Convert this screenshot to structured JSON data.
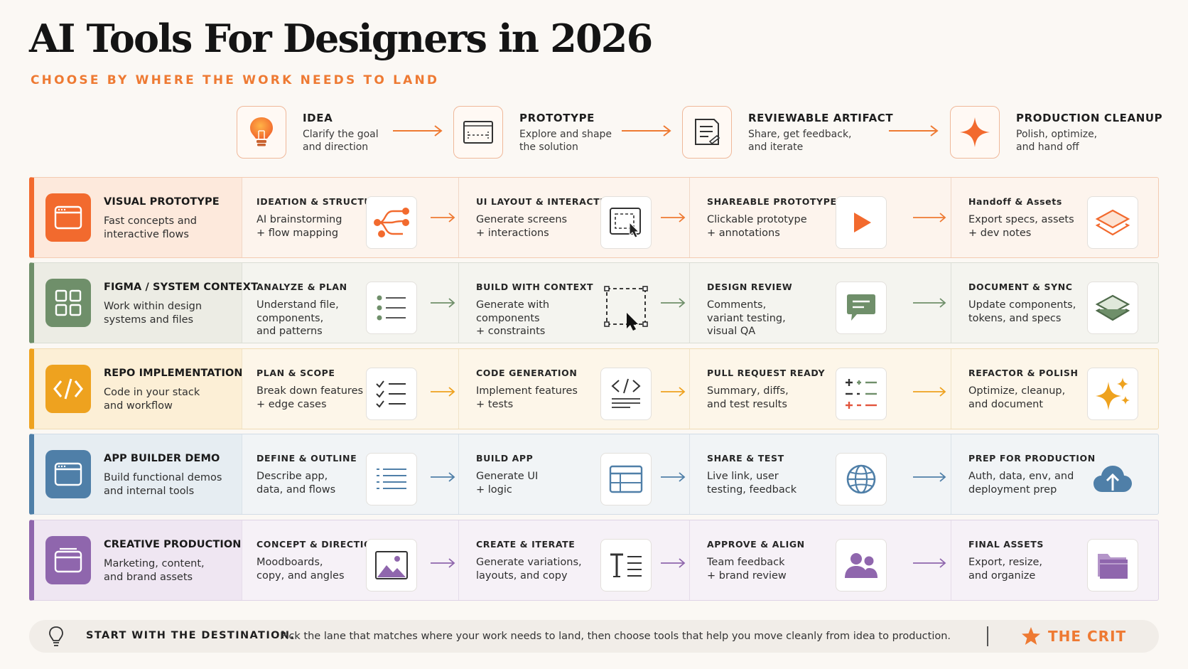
{
  "title": "AI Tools For Designers in 2026",
  "subtitle": "CHOOSE BY WHERE THE WORK NEEDS TO LAND",
  "stages": [
    {
      "title": "IDEA",
      "desc": "Clarify the goal\nand direction",
      "icon": "lightbulb-icon"
    },
    {
      "title": "PROTOTYPE",
      "desc": "Explore and shape\nthe solution",
      "icon": "wireframe-icon"
    },
    {
      "title": "REVIEWABLE ARTIFACT",
      "desc": "Share, get feedback,\nand iterate",
      "icon": "document-icon"
    },
    {
      "title": "PRODUCTION CLEANUP",
      "desc": "Polish, optimize,\nand hand off",
      "icon": "sparkle-icon"
    }
  ],
  "rows": [
    {
      "title": "VISUAL PROTOTYPE",
      "desc": "Fast concepts and\ninteractive flows",
      "color": "#f26a2e",
      "cells": [
        {
          "label": "IDEATION & STRUCTURE",
          "desc": "AI brainstorming\n+ flow mapping",
          "icon": "flow-map-icon"
        },
        {
          "label": "UI LAYOUT & INTERACTION",
          "desc": "Generate screens\n+ interactions",
          "icon": "screen-cursor-icon"
        },
        {
          "label": "SHAREABLE PROTOTYPE",
          "desc": "Clickable prototype\n+ annotations",
          "icon": "play-icon"
        },
        {
          "label": "Handoff & Assets",
          "desc": "Export specs, assets\n+ dev notes",
          "icon": "layers-icon"
        }
      ]
    },
    {
      "title": "FIGMA / SYSTEM CONTEXT",
      "desc": "Work within design\nsystems and files",
      "color": "#6f8f6a",
      "cells": [
        {
          "label": "ANALYZE & PLAN",
          "desc": "Understand file,\ncomponents,\nand patterns",
          "icon": "list-icon"
        },
        {
          "label": "BUILD WITH CONTEXT",
          "desc": "Generate with\ncomponents\n+ constraints",
          "icon": "selection-cursor-icon"
        },
        {
          "label": "DESIGN REVIEW",
          "desc": "Comments,\nvariant testing,\nvisual QA",
          "icon": "comment-icon"
        },
        {
          "label": "DOCUMENT & SYNC",
          "desc": "Update components,\ntokens, and specs",
          "icon": "layers-icon"
        }
      ]
    },
    {
      "title": "REPO IMPLEMENTATION",
      "desc": "Code in your stack\nand workflow",
      "color": "#eea21f",
      "cells": [
        {
          "label": "PLAN & SCOPE",
          "desc": "Break down features\n+ edge cases",
          "icon": "checklist-icon"
        },
        {
          "label": "CODE GENERATION",
          "desc": "Implement features\n+ tests",
          "icon": "code-icon"
        },
        {
          "label": "PULL REQUEST READY",
          "desc": "Summary, diffs,\nand test results",
          "icon": "diff-icon"
        },
        {
          "label": "REFACTOR & POLISH",
          "desc": "Optimize, cleanup,\nand document",
          "icon": "sparkles-icon"
        }
      ]
    },
    {
      "title": "APP BUILDER DEMO",
      "desc": "Build functional demos\nand internal tools",
      "color": "#4f7fa8",
      "cells": [
        {
          "label": "DEFINE & OUTLINE",
          "desc": "Describe app,\ndata, and flows",
          "icon": "lines-icon"
        },
        {
          "label": "BUILD APP",
          "desc": "Generate UI\n+ logic",
          "icon": "table-icon"
        },
        {
          "label": "SHARE & TEST",
          "desc": "Live link, user\ntesting, feedback",
          "icon": "globe-icon"
        },
        {
          "label": "PREP FOR PRODUCTION",
          "desc": "Auth, data, env, and\ndeployment prep",
          "icon": "cloud-upload-icon"
        }
      ]
    },
    {
      "title": "CREATIVE PRODUCTION",
      "desc": "Marketing, content,\nand brand assets",
      "color": "#8f66ad",
      "cells": [
        {
          "label": "CONCEPT & DIRECTION",
          "desc": "Moodboards,\ncopy, and angles",
          "icon": "image-icon"
        },
        {
          "label": "CREATE & ITERATE",
          "desc": "Generate variations,\nlayouts, and copy",
          "icon": "text-icon"
        },
        {
          "label": "APPROVE & ALIGN",
          "desc": "Team feedback\n+ brand review",
          "icon": "team-icon"
        },
        {
          "label": "FINAL ASSETS",
          "desc": "Export, resize,\nand organize",
          "icon": "folder-icon"
        }
      ]
    }
  ],
  "footer": {
    "strong": "START WITH THE DESTINATION.",
    "text": "Pick the lane that matches where your work needs to land, then choose tools that help you move cleanly from idea to production.",
    "brand": "THE CRIT"
  },
  "colors": {
    "accent": "#ee7a33",
    "visual": "#f26a2e",
    "figma": "#6f8f6a",
    "repo": "#eea21f",
    "app": "#4f7fa8",
    "creative": "#8f66ad"
  }
}
